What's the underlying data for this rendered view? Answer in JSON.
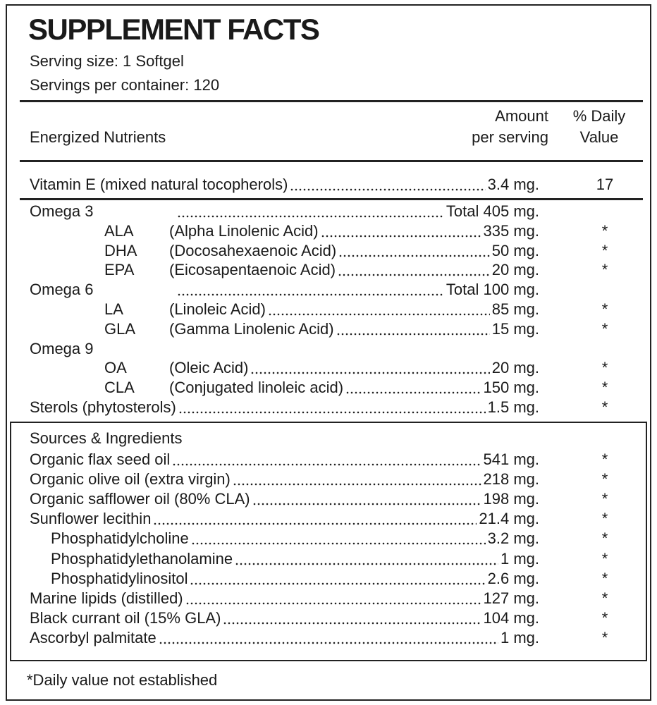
{
  "header": {
    "title": "SUPPLEMENT FACTS",
    "serving_size": "Serving size: 1 Softgel",
    "servings_per_container": "Servings per container: 120"
  },
  "columns": {
    "nutrients": "Energized Nutrients",
    "amount": [
      "Amount",
      "per serving"
    ],
    "daily_value": [
      "% Daily",
      "Value"
    ]
  },
  "vitamins": [
    {
      "name": "Vitamin E (mixed natural tocopherols)",
      "amount": "3.4 mg.",
      "daily_value": "17"
    }
  ],
  "fatty_acids": [
    {
      "name": "Omega 3",
      "amount": "Total 405 mg.",
      "components": [
        {
          "abbr": "ALA",
          "name": "(Alpha Linolenic Acid)",
          "amount": "335 mg.",
          "daily_value": "*"
        },
        {
          "abbr": "DHA",
          "name": "(Docosahexaenoic Acid)",
          "amount": "50 mg.",
          "daily_value": "*"
        },
        {
          "abbr": "EPA",
          "name": "(Eicosapentaenoic Acid)",
          "amount": "20 mg.",
          "daily_value": "*"
        }
      ]
    },
    {
      "name": "Omega 6",
      "amount": "Total 100 mg.",
      "components": [
        {
          "abbr": "LA",
          "name": "(Linoleic Acid)",
          "amount": "85 mg.",
          "daily_value": "*"
        },
        {
          "abbr": "GLA",
          "name": "(Gamma Linolenic Acid)",
          "amount": "15 mg.",
          "daily_value": "*"
        }
      ]
    },
    {
      "name": "Omega 9",
      "components": [
        {
          "abbr": "OA",
          "name": "(Oleic Acid)",
          "amount": "20 mg.",
          "daily_value": "*"
        },
        {
          "abbr": "CLA",
          "name": "(Conjugated linoleic acid)",
          "amount": "150 mg.",
          "daily_value": "*"
        }
      ]
    },
    {
      "name": "Sterols (phytosterols)",
      "amount": "1.5 mg.",
      "daily_value": "*"
    }
  ],
  "sources": {
    "title": "Sources & Ingredients",
    "items": [
      {
        "name": "Organic flax seed oil",
        "amount": "541 mg.",
        "daily_value": "*"
      },
      {
        "name": "Organic olive oil (extra virgin)",
        "amount": "218 mg.",
        "daily_value": "*"
      },
      {
        "name": "Organic safflower oil (80% CLA)",
        "amount": "198 mg.",
        "daily_value": "*"
      },
      {
        "name": "Sunflower lecithin",
        "amount": "21.4 mg.",
        "daily_value": "*",
        "components": [
          {
            "name": "Phosphatidylcholine",
            "amount": "3.2 mg.",
            "daily_value": "*"
          },
          {
            "name": "Phosphatidylethanolamine",
            "amount": "1 mg.",
            "daily_value": "*"
          },
          {
            "name": "Phosphatidylinositol",
            "amount": "2.6 mg.",
            "daily_value": "*"
          }
        ]
      },
      {
        "name": "Marine lipids (distilled)",
        "amount": "127 mg.",
        "daily_value": "*"
      },
      {
        "name": "Black currant oil (15% GLA)",
        "amount": "104 mg.",
        "daily_value": "*"
      },
      {
        "name": "Ascorbyl palmitate",
        "amount": "1 mg.",
        "daily_value": "*"
      }
    ]
  },
  "footnote": "*Daily value not established"
}
